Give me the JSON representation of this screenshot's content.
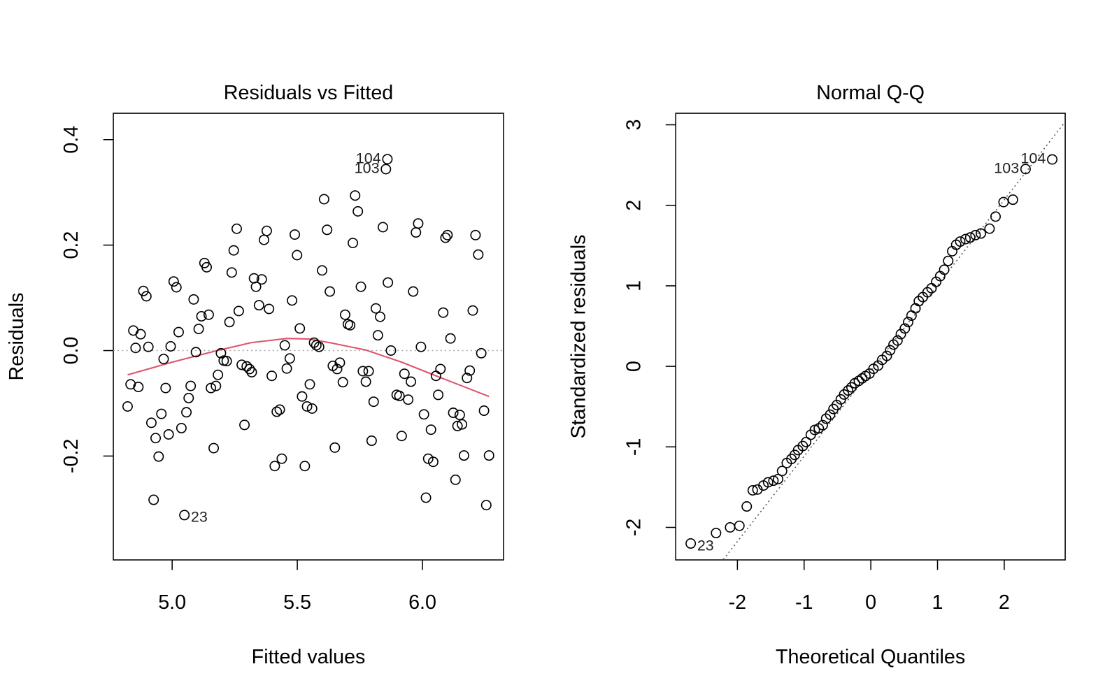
{
  "chart_data": [
    {
      "type": "scatter",
      "title": "Residuals vs Fitted",
      "x_label": "Fitted values",
      "y_label": "Residuals",
      "xlim": [
        4.765,
        6.324
      ],
      "ylim": [
        -0.397,
        0.45
      ],
      "xticks": [
        {
          "value": 5,
          "label": "5.0"
        },
        {
          "value": 5.5,
          "label": "5.5"
        },
        {
          "value": 6,
          "label": "6.0"
        }
      ],
      "yticks": [
        -0.2,
        {
          "value": 0,
          "label": "0.0"
        },
        0.2,
        0.4
      ],
      "color": "#000000",
      "x": [
        5.86,
        5.854,
        5.049,
        4.822,
        4.834,
        4.845,
        4.854,
        4.865,
        4.874,
        4.885,
        4.897,
        4.905,
        4.917,
        4.926,
        4.934,
        4.946,
        4.957,
        4.966,
        4.974,
        4.986,
        4.994,
        5.006,
        5.017,
        5.026,
        5.037,
        5.057,
        5.066,
        5.074,
        5.086,
        5.095,
        5.106,
        5.117,
        5.129,
        5.138,
        5.146,
        5.155,
        5.166,
        5.175,
        5.183,
        5.195,
        5.206,
        5.218,
        5.229,
        5.238,
        5.246,
        5.258,
        5.266,
        5.278,
        5.289,
        5.298,
        5.309,
        5.318,
        5.327,
        5.335,
        5.347,
        5.358,
        5.367,
        5.378,
        5.387,
        5.398,
        5.41,
        5.418,
        5.43,
        5.438,
        5.45,
        5.458,
        5.47,
        5.479,
        5.49,
        5.499,
        5.51,
        5.519,
        5.53,
        5.539,
        5.55,
        5.559,
        5.567,
        5.576,
        5.587,
        5.599,
        5.607,
        5.619,
        5.63,
        5.642,
        5.65,
        5.659,
        5.67,
        5.682,
        5.691,
        5.702,
        5.711,
        5.722,
        5.731,
        5.742,
        5.754,
        5.762,
        5.774,
        5.785,
        5.797,
        5.805,
        5.814,
        5.822,
        5.831,
        5.842,
        5.862,
        5.874,
        5.897,
        5.908,
        5.917,
        5.928,
        5.943,
        5.954,
        5.963,
        5.974,
        5.983,
        5.994,
        6.006,
        6.014,
        6.023,
        6.034,
        6.043,
        6.054,
        6.063,
        6.072,
        6.083,
        6.092,
        6.1,
        6.112,
        6.123,
        6.132,
        6.14,
        6.149,
        6.158,
        6.166,
        6.178,
        6.189,
        6.201,
        6.212,
        6.223,
        6.235,
        6.246,
        6.255,
        6.266
      ],
      "values": [
        0.363,
        0.344,
        -0.312,
        -0.106,
        -0.064,
        0.038,
        0.005,
        -0.069,
        0.031,
        0.113,
        0.103,
        0.007,
        -0.137,
        -0.283,
        -0.166,
        -0.201,
        -0.12,
        -0.016,
        -0.071,
        -0.159,
        0.008,
        0.131,
        0.12,
        0.035,
        -0.147,
        -0.117,
        -0.09,
        -0.067,
        0.097,
        -0.003,
        0.041,
        0.065,
        0.166,
        0.158,
        0.068,
        -0.071,
        -0.185,
        -0.067,
        -0.046,
        -0.005,
        -0.019,
        -0.02,
        0.054,
        0.148,
        0.19,
        0.231,
        0.075,
        -0.027,
        -0.141,
        -0.03,
        -0.035,
        -0.041,
        0.137,
        0.121,
        0.086,
        0.135,
        0.21,
        0.227,
        0.079,
        -0.048,
        -0.219,
        -0.116,
        -0.112,
        -0.205,
        0.01,
        -0.034,
        -0.015,
        0.095,
        0.22,
        0.181,
        0.042,
        -0.087,
        -0.219,
        -0.106,
        -0.064,
        -0.11,
        0.015,
        0.01,
        0.007,
        0.152,
        0.287,
        0.229,
        0.112,
        -0.029,
        -0.184,
        -0.035,
        -0.023,
        -0.06,
        0.068,
        0.05,
        0.048,
        0.204,
        0.294,
        0.264,
        0.121,
        -0.039,
        -0.059,
        -0.039,
        -0.171,
        -0.097,
        0.08,
        0.029,
        0.064,
        0.234,
        0.129,
        0.0,
        -0.084,
        -0.086,
        -0.162,
        -0.044,
        -0.093,
        -0.059,
        0.112,
        0.224,
        0.241,
        0.007,
        -0.121,
        -0.279,
        -0.205,
        -0.15,
        -0.211,
        -0.048,
        -0.084,
        -0.035,
        0.072,
        0.214,
        0.219,
        0.023,
        -0.118,
        -0.245,
        -0.143,
        -0.122,
        -0.14,
        -0.199,
        -0.052,
        -0.038,
        0.076,
        0.219,
        0.182,
        -0.005,
        -0.114,
        -0.293,
        -0.199
      ],
      "point_labels": [
        {
          "text": "104",
          "point": 0
        },
        {
          "text": "103",
          "point": 1
        },
        {
          "text": "23",
          "point": 2
        }
      ],
      "hline": 0,
      "smooth": {
        "color": "#df536b",
        "x": [
          4.822,
          5.0,
          5.172,
          5.315,
          5.458,
          5.544,
          5.63,
          5.774,
          5.917,
          6.06,
          6.266
        ],
        "values": [
          -0.046,
          -0.022,
          -0.001,
          0.015,
          0.023,
          0.022,
          0.015,
          0.001,
          -0.022,
          -0.049,
          -0.087
        ]
      }
    },
    {
      "type": "scatter",
      "title": "Normal Q-Q",
      "x_label": "Theoretical Quantiles",
      "y_label": "Standardized residuals",
      "xlim": [
        -2.925,
        2.914
      ],
      "ylim": [
        -2.404,
        3.143
      ],
      "xticks": [
        -2,
        -1,
        0,
        1,
        2
      ],
      "yticks": [
        -2,
        -1,
        0,
        1,
        2,
        3
      ],
      "color": "#000000",
      "x": [
        -2.7,
        -2.32,
        -2.11,
        -1.97,
        -1.86,
        -1.77,
        -1.7,
        -1.61,
        -1.54,
        -1.46,
        -1.39,
        -1.33,
        -1.26,
        -1.19,
        -1.14,
        -1.09,
        -1.02,
        -0.97,
        -0.9,
        -0.84,
        -0.78,
        -0.72,
        -0.67,
        -0.61,
        -0.56,
        -0.51,
        -0.45,
        -0.4,
        -0.34,
        -0.29,
        -0.24,
        -0.18,
        -0.13,
        -0.08,
        -0.02,
        0.04,
        0.11,
        0.17,
        0.24,
        0.29,
        0.34,
        0.4,
        0.45,
        0.51,
        0.56,
        0.61,
        0.67,
        0.72,
        0.78,
        0.85,
        0.91,
        0.98,
        1.04,
        1.1,
        1.16,
        1.22,
        1.28,
        1.34,
        1.42,
        1.49,
        1.57,
        1.65,
        1.78,
        1.87,
        1.99,
        2.13,
        2.32,
        2.72
      ],
      "values": [
        -2.2,
        -2.07,
        -2.0,
        -1.98,
        -1.74,
        -1.54,
        -1.53,
        -1.48,
        -1.44,
        -1.42,
        -1.4,
        -1.3,
        -1.2,
        -1.15,
        -1.1,
        -1.04,
        -0.99,
        -0.94,
        -0.85,
        -0.79,
        -0.77,
        -0.73,
        -0.65,
        -0.6,
        -0.53,
        -0.48,
        -0.41,
        -0.35,
        -0.3,
        -0.26,
        -0.21,
        -0.18,
        -0.15,
        -0.12,
        -0.09,
        -0.03,
        0.01,
        0.08,
        0.13,
        0.2,
        0.27,
        0.32,
        0.4,
        0.47,
        0.55,
        0.63,
        0.72,
        0.81,
        0.86,
        0.92,
        0.97,
        1.05,
        1.12,
        1.2,
        1.31,
        1.43,
        1.51,
        1.55,
        1.58,
        1.6,
        1.63,
        1.65,
        1.71,
        1.86,
        2.04,
        2.07,
        2.45,
        2.57
      ],
      "point_labels": [
        {
          "text": "23",
          "point": 0
        },
        {
          "text": "103",
          "point": 66
        },
        {
          "text": "104",
          "point": 67
        }
      ],
      "qqline": {
        "intercept": -0.054,
        "slope": 1.061
      }
    }
  ]
}
